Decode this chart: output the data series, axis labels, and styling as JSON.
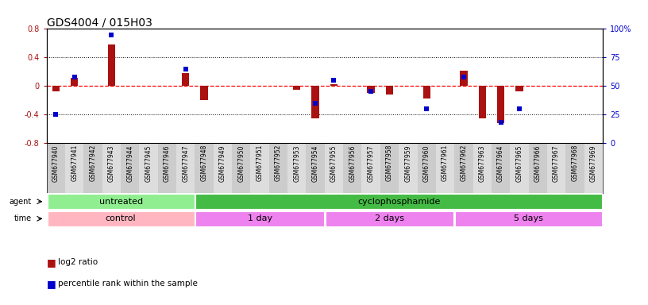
{
  "title": "GDS4004 / 015H03",
  "samples": [
    "GSM677940",
    "GSM677941",
    "GSM677942",
    "GSM677943",
    "GSM677944",
    "GSM677945",
    "GSM677946",
    "GSM677947",
    "GSM677948",
    "GSM677949",
    "GSM677950",
    "GSM677951",
    "GSM677952",
    "GSM677953",
    "GSM677954",
    "GSM677955",
    "GSM677956",
    "GSM677957",
    "GSM677958",
    "GSM677959",
    "GSM677960",
    "GSM677961",
    "GSM677962",
    "GSM677963",
    "GSM677964",
    "GSM677965",
    "GSM677966",
    "GSM677967",
    "GSM677968",
    "GSM677969"
  ],
  "log2_ratios": [
    -0.07,
    0.12,
    0.0,
    0.58,
    0.0,
    0.0,
    0.0,
    0.18,
    -0.2,
    0.0,
    0.0,
    0.0,
    0.0,
    -0.05,
    -0.45,
    0.03,
    0.0,
    -0.1,
    -0.12,
    0.0,
    -0.17,
    0.0,
    0.22,
    -0.45,
    -0.52,
    -0.07,
    0.0,
    0.0,
    0.0,
    0.0
  ],
  "percentile_ranks": [
    25,
    58,
    0,
    95,
    0,
    0,
    0,
    65,
    0,
    0,
    0,
    0,
    0,
    0,
    35,
    55,
    0,
    45,
    0,
    0,
    30,
    0,
    58,
    0,
    18,
    30,
    0,
    0,
    0,
    0
  ],
  "ylim_left": [
    -0.8,
    0.8
  ],
  "ylim_right": [
    0,
    100
  ],
  "yticks_left": [
    -0.8,
    -0.4,
    0.0,
    0.4,
    0.8
  ],
  "yticks_right": [
    0,
    25,
    50,
    75,
    100
  ],
  "yticklabels_left": [
    "-0.8",
    "-0.4",
    "0",
    "0.4",
    "0.8"
  ],
  "yticklabels_right": [
    "0",
    "25",
    "50",
    "75",
    "100%"
  ],
  "bar_color": "#AA1111",
  "dot_color": "#0000CC",
  "zero_line_color": "#FF0000",
  "grid_color": "#000000",
  "agent_groups": [
    {
      "label": "untreated",
      "start": 0,
      "end": 8,
      "color": "#90EE90"
    },
    {
      "label": "cyclophosphamide",
      "start": 8,
      "end": 30,
      "color": "#44BB44"
    }
  ],
  "time_groups": [
    {
      "label": "control",
      "start": 0,
      "end": 8,
      "color": "#FFB6C1"
    },
    {
      "label": "1 day",
      "start": 8,
      "end": 15,
      "color": "#EE82EE"
    },
    {
      "label": "2 days",
      "start": 15,
      "end": 22,
      "color": "#EE82EE"
    },
    {
      "label": "5 days",
      "start": 22,
      "end": 30,
      "color": "#EE82EE"
    }
  ],
  "bar_width": 0.4,
  "dot_size": 25,
  "title_fontsize": 10,
  "tick_fontsize": 7,
  "sample_fontsize": 5.5,
  "group_label_fontsize": 8,
  "legend_fontsize": 7.5,
  "row_label_fontsize": 7
}
